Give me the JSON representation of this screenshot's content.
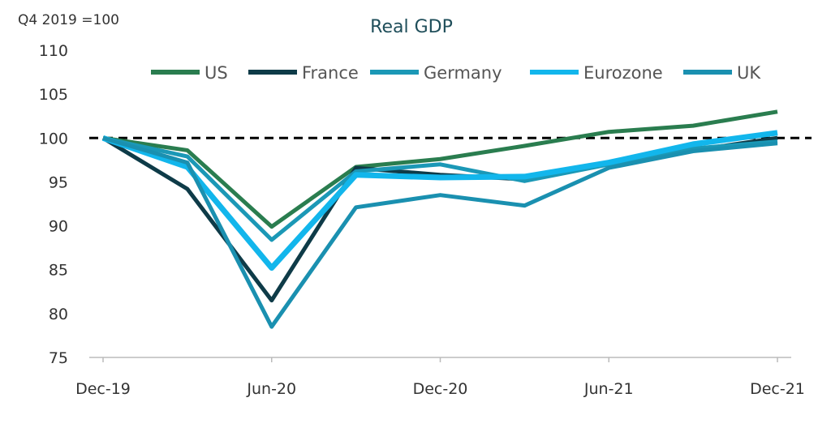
{
  "chart_data": {
    "type": "line",
    "title": "Real GDP",
    "y_axis_label": "Q4 2019 =100",
    "categories": [
      "Dec-19",
      null,
      "Jun-20",
      null,
      "Dec-20",
      null,
      "Jun-21",
      null,
      "Dec-21"
    ],
    "series": [
      {
        "name": "US",
        "color": "#2a7d4f",
        "values": [
          100,
          98.6,
          89.9,
          96.7,
          97.6,
          99.1,
          100.7,
          101.4,
          103.0
        ]
      },
      {
        "name": "France",
        "color": "#0e3b48",
        "values": [
          100,
          94.2,
          81.5,
          96.6,
          95.8,
          95.3,
          97.1,
          98.6,
          100.0
        ]
      },
      {
        "name": "Germany",
        "color": "#1b98b6",
        "values": [
          100,
          97.9,
          88.4,
          96.2,
          97.0,
          95.1,
          97.0,
          98.8,
          99.6
        ]
      },
      {
        "name": "Eurozone",
        "color": "#12b6ec",
        "values": [
          100,
          96.7,
          85.2,
          95.8,
          95.5,
          95.6,
          97.2,
          99.3,
          100.6
        ]
      },
      {
        "name": "UK",
        "color": "#1a90b0",
        "values": [
          100,
          97.2,
          78.5,
          92.1,
          93.5,
          92.3,
          96.6,
          98.5,
          99.4
        ]
      }
    ],
    "reference_line": 100,
    "ylim": [
      75,
      110
    ],
    "yticks": [
      75,
      80,
      85,
      90,
      95,
      100,
      105,
      110
    ]
  }
}
